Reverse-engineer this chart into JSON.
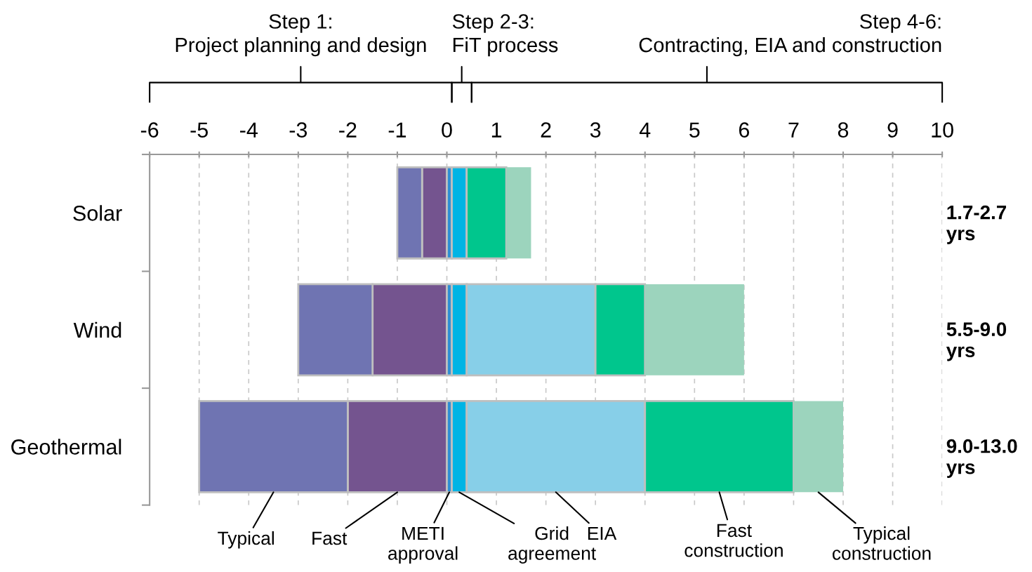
{
  "chart_data": {
    "type": "bar",
    "orientation": "horizontal",
    "stacked": true,
    "categories": [
      "Solar",
      "Wind",
      "Geothermal"
    ],
    "series": [
      {
        "name": "Fast",
        "color": "#74548f",
        "values": [
          -0.5,
          -1.5,
          -2
        ]
      },
      {
        "name": "Typical",
        "color": "#6f74b2",
        "values": [
          -0.5,
          -1.5,
          -3
        ]
      },
      {
        "name": "METI\napproval",
        "color": "#2f8fd4",
        "values": [
          0.1,
          0.1,
          0.1
        ]
      },
      {
        "name": "Grid\nagreement",
        "color": "#00b4e4",
        "values": [
          0.3,
          0.3,
          0.3
        ]
      },
      {
        "name": "EIA",
        "color": "#87cfe8",
        "values": [
          null,
          2.6,
          3.6
        ]
      },
      {
        "name": "Fast\nconstruction",
        "color": "#00c68d",
        "values": [
          0.8,
          1,
          3
        ]
      },
      {
        "name": "Typical\nconstruction",
        "color": "#9cd4bd",
        "values": [
          0.5,
          2,
          1
        ]
      }
    ],
    "xlim": [
      -6,
      10
    ],
    "xticks": [
      -6,
      -5,
      -4,
      -3,
      -2,
      -1,
      0,
      1,
      2,
      3,
      4,
      5,
      6,
      7,
      8,
      9,
      10
    ],
    "grid": "x",
    "annotations": [
      "Step 1:\nProject planning and design",
      "Step 2-3:\nFiT process",
      "Step 4-6:\nContracting, EIA and construction",
      "1.7-2.7\nyrs",
      "5.5-9.0\nyrs",
      "9.0-13.0\nyrs"
    ]
  }
}
